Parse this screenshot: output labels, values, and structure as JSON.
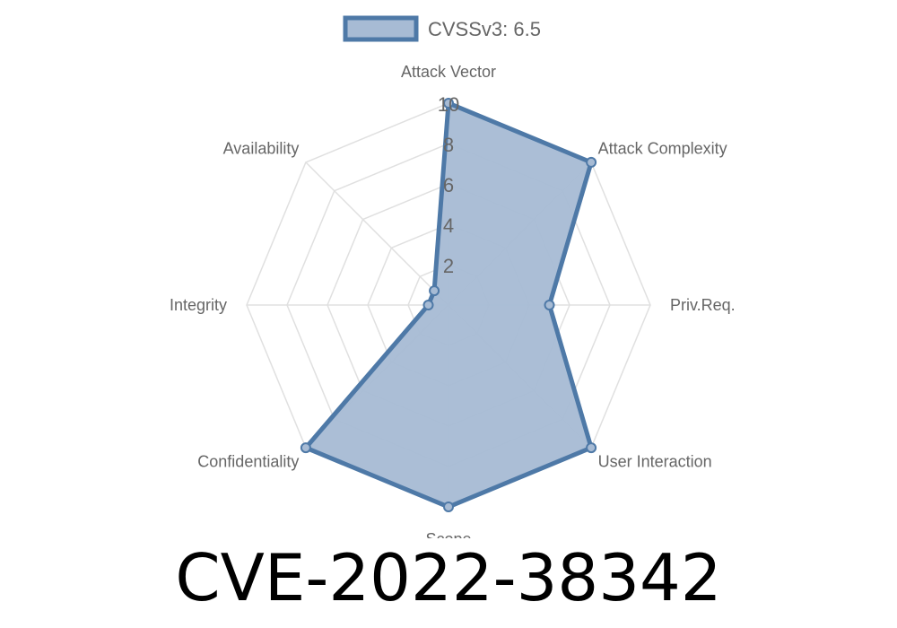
{
  "chart_data": {
    "type": "radar",
    "categories": [
      "Attack Vector",
      "Attack Complexity",
      "Priv.Req.",
      "User Interaction",
      "Scope",
      "Confidentiality",
      "Integrity",
      "Availability"
    ],
    "series": [
      {
        "name": "CVSSv3: 6.5",
        "values": [
          10,
          10,
          5,
          10,
          10,
          10,
          1,
          1
        ]
      }
    ],
    "rlim": [
      0,
      10
    ],
    "ticks": [
      "2",
      "4",
      "6",
      "8",
      "10"
    ],
    "grid": true,
    "legend": "top",
    "colors": {
      "line": "#4e79a7",
      "fill": "#a7bbd4",
      "grid": "#e0e0e0",
      "label": "#666666"
    }
  },
  "title": "CVE-2022-38342"
}
